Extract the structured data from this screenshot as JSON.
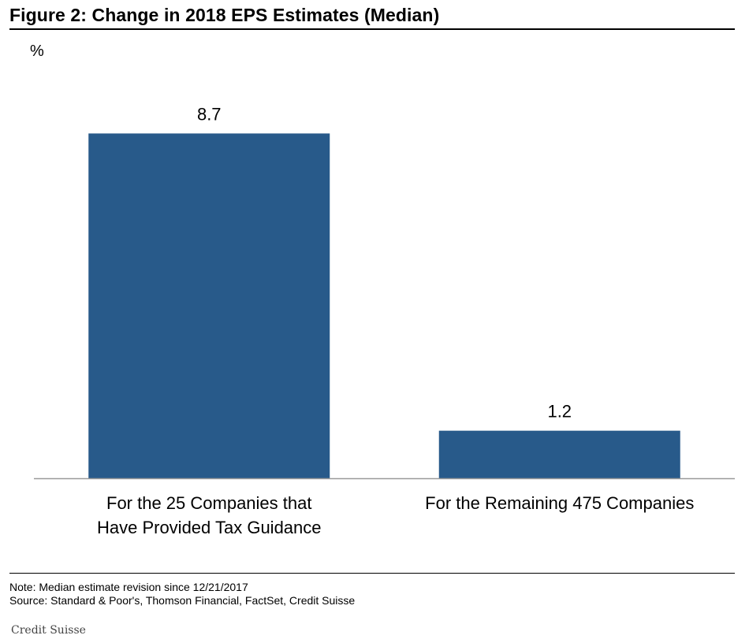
{
  "figure": {
    "title": "Figure 2: Change in 2018 EPS Estimates (Median)",
    "unit_label": "%"
  },
  "chart_data": {
    "type": "bar",
    "title": "Figure 2: Change in 2018 EPS Estimates (Median)",
    "xlabel": "",
    "ylabel": "%",
    "categories": [
      [
        "For the 25 Companies that",
        "Have Provided Tax Guidance"
      ],
      [
        "For the Remaining 475 Companies"
      ]
    ],
    "values": [
      8.7,
      1.2
    ],
    "data_labels": [
      "8.7",
      "1.2"
    ],
    "ylim": [
      0,
      10
    ],
    "bar_color": "#285a8a",
    "grid": false,
    "legend": "none"
  },
  "footer": {
    "note": "Note: Median estimate revision since 12/21/2017",
    "source": "Source: Standard & Poor's, Thomson Financial, FactSet, Credit Suisse"
  },
  "watermark": "Credit Suisse"
}
